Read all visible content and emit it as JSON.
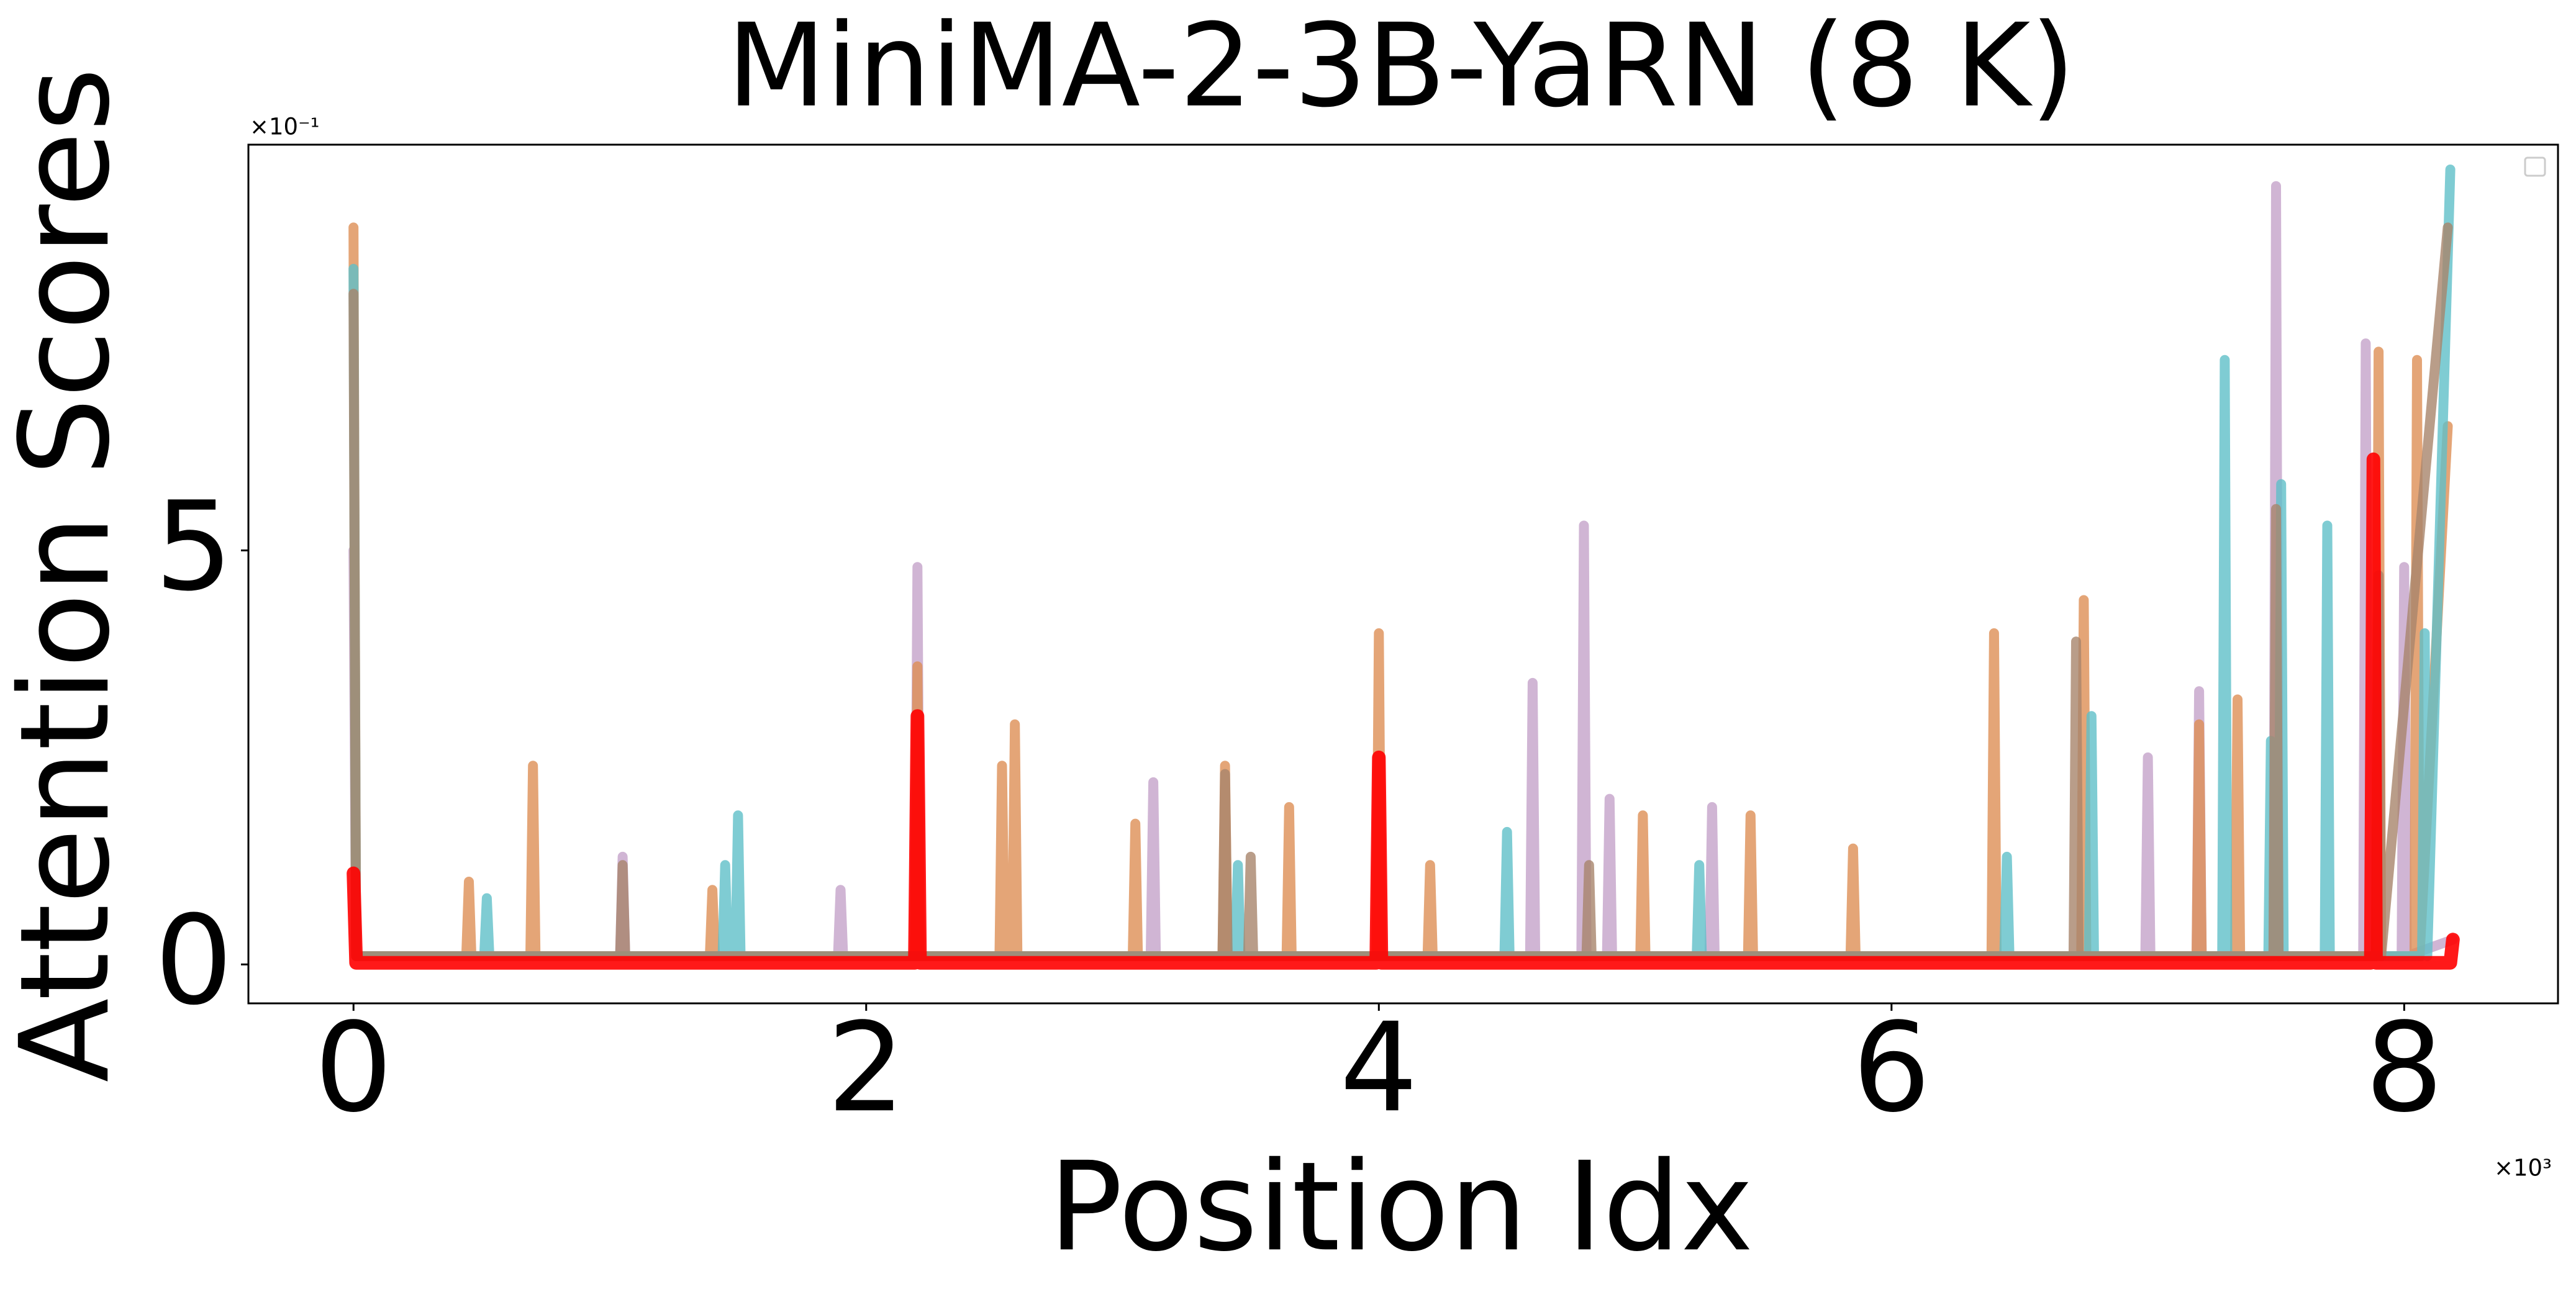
{
  "chart_data": {
    "type": "line",
    "title": "MiniMA-2-3B-YaRN (8 K)",
    "x_label": "Position Idx",
    "y_label": "Attention Scores",
    "x_offset_text": "×10³",
    "y_offset_text": "×10⁻¹",
    "xlim": [
      -0.41,
      8.6
    ],
    "ylim": [
      -0.47,
      9.9
    ],
    "xticks": [
      0,
      2,
      4,
      6,
      8
    ],
    "yticks": [
      0,
      5
    ],
    "series": [
      {
        "color": "#c4a3c9",
        "x": [
          0,
          0.01,
          1.04,
          1.05,
          1.06,
          1.89,
          1.9,
          1.91,
          2.19,
          2.2,
          2.21,
          3.11,
          3.12,
          3.13,
          4.59,
          4.6,
          4.61,
          4.79,
          4.8,
          4.81,
          4.89,
          4.9,
          4.91,
          5.29,
          5.3,
          5.31,
          6.99,
          7.0,
          7.01,
          7.19,
          7.2,
          7.21,
          7.49,
          7.5,
          7.51,
          7.84,
          7.85,
          7.86,
          7.99,
          8.0,
          8.01,
          8.19
        ],
        "values": [
          5.0,
          0.1,
          0.1,
          1.3,
          0.1,
          0.1,
          0.9,
          0.1,
          0.1,
          4.8,
          0.1,
          0.1,
          2.2,
          0.1,
          0.1,
          3.4,
          0.1,
          0.1,
          5.3,
          0.1,
          0.1,
          2.0,
          0.1,
          0.1,
          1.9,
          0.1,
          0.1,
          2.5,
          0.1,
          0.1,
          3.3,
          0.1,
          0.1,
          9.4,
          0.1,
          0.1,
          7.5,
          0.1,
          0.1,
          4.8,
          0.1,
          0.3
        ]
      },
      {
        "color": "#dd8f55",
        "x": [
          0,
          0.01,
          0.44,
          0.45,
          0.46,
          0.69,
          0.7,
          0.71,
          1.39,
          1.4,
          1.41,
          2.19,
          2.2,
          2.21,
          2.52,
          2.53,
          2.54,
          2.57,
          2.58,
          2.59,
          3.04,
          3.05,
          3.06,
          3.39,
          3.4,
          3.41,
          3.64,
          3.65,
          3.66,
          3.99,
          4.0,
          4.01,
          4.19,
          4.2,
          4.21,
          5.02,
          5.03,
          5.04,
          5.44,
          5.45,
          5.46,
          5.84,
          5.85,
          5.86,
          6.39,
          6.4,
          6.41,
          6.74,
          6.75,
          6.76,
          7.19,
          7.2,
          7.21,
          7.34,
          7.35,
          7.36,
          7.89,
          7.9,
          7.91,
          8.04,
          8.05,
          8.06,
          8.17
        ],
        "values": [
          8.9,
          0.1,
          0.1,
          1.0,
          0.1,
          0.1,
          2.4,
          0.1,
          0.1,
          0.9,
          0.1,
          0.1,
          3.6,
          0.1,
          0.1,
          2.4,
          0.1,
          0.1,
          2.9,
          0.1,
          0.1,
          1.7,
          0.1,
          0.1,
          2.4,
          0.1,
          0.1,
          1.9,
          0.1,
          0.1,
          4.0,
          0.1,
          0.1,
          1.2,
          0.1,
          0.1,
          1.8,
          0.1,
          0.1,
          1.8,
          0.1,
          0.1,
          1.4,
          0.1,
          0.1,
          4.0,
          0.1,
          0.1,
          4.4,
          0.1,
          0.1,
          2.9,
          0.1,
          0.1,
          3.2,
          0.1,
          0.1,
          7.4,
          0.1,
          0.1,
          7.3,
          0.1,
          6.5
        ]
      },
      {
        "color": "#5fbfc8",
        "x": [
          0,
          0.01,
          0.51,
          0.52,
          0.53,
          1.44,
          1.45,
          1.46,
          1.49,
          1.5,
          1.51,
          3.44,
          3.45,
          3.46,
          4.49,
          4.5,
          4.51,
          5.24,
          5.25,
          5.26,
          6.44,
          6.45,
          6.46,
          6.77,
          6.78,
          6.79,
          7.29,
          7.3,
          7.31,
          7.47,
          7.48,
          7.49,
          7.51,
          7.52,
          7.53,
          7.69,
          7.7,
          7.71,
          8.07,
          8.08,
          8.09,
          8.18
        ],
        "values": [
          8.4,
          0.1,
          0.1,
          0.8,
          0.1,
          0.1,
          1.2,
          0.1,
          0.1,
          1.8,
          0.1,
          0.1,
          1.2,
          0.1,
          0.1,
          1.6,
          0.1,
          0.1,
          1.2,
          0.1,
          0.1,
          1.3,
          0.1,
          0.1,
          3.0,
          0.1,
          0.1,
          7.3,
          0.1,
          0.1,
          2.7,
          0.1,
          0.1,
          5.8,
          0.1,
          0.1,
          5.3,
          0.1,
          0.1,
          4.0,
          0.1,
          9.6
        ]
      },
      {
        "color": "#a8846c",
        "x": [
          0,
          0.01,
          1.04,
          1.05,
          1.06,
          3.39,
          3.4,
          3.41,
          3.49,
          3.5,
          3.51,
          4.81,
          4.82,
          4.83,
          6.71,
          6.72,
          6.73,
          7.49,
          7.5,
          7.51,
          7.89,
          7.9,
          7.91,
          8.17
        ],
        "values": [
          8.1,
          0.1,
          0.1,
          1.2,
          0.1,
          0.1,
          2.3,
          0.1,
          0.1,
          1.3,
          0.1,
          0.1,
          1.2,
          0.1,
          0.1,
          3.9,
          0.1,
          0.1,
          5.5,
          0.1,
          0.1,
          4.7,
          0.1,
          8.9
        ]
      },
      {
        "color": "#ff0000",
        "x": [
          0,
          0.01,
          2.19,
          2.2,
          2.21,
          3.99,
          4.0,
          4.01,
          7.87,
          7.88,
          7.89,
          8.18,
          8.19
        ],
        "values": [
          1.1,
          0.02,
          0.02,
          3.0,
          0.02,
          0.02,
          2.5,
          0.02,
          0.02,
          6.1,
          0.02,
          0.02,
          0.3
        ]
      }
    ]
  }
}
